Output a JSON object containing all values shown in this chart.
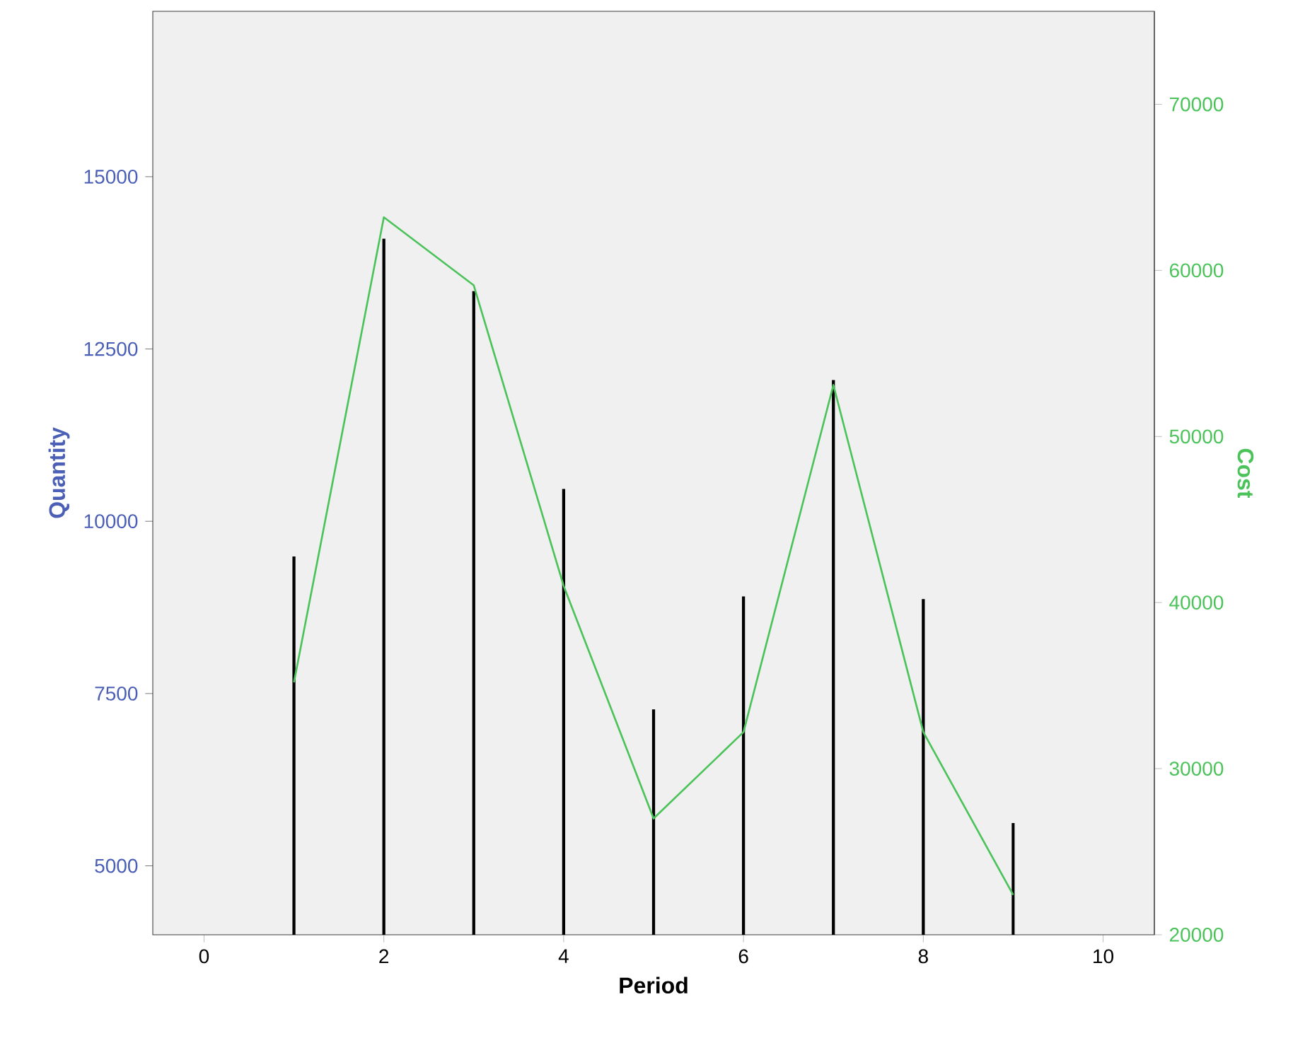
{
  "chart_data": {
    "type": "bar",
    "xlabel": "Period",
    "ylabel": "Quantity",
    "y2label": "Cost",
    "x": [
      1,
      2,
      3,
      4,
      5,
      6,
      7,
      8,
      9
    ],
    "series": [
      {
        "color": "#000000",
        "values": [
          9490,
          14100,
          13340,
          10470,
          7270,
          8910,
          12050,
          8870,
          5620
        ]
      },
      {
        "type": "line",
        "axis": "y2",
        "color": "#4cc35a",
        "values": [
          35200,
          63200,
          59100,
          41000,
          27000,
          32200,
          53100,
          32200,
          22400
        ]
      }
    ],
    "xlim": [
      -0.57,
      10.57
    ],
    "xticks": [
      0,
      2,
      4,
      6,
      8,
      10
    ],
    "ylim": [
      4000,
      17400
    ],
    "yticks": [
      5000,
      7500,
      10000,
      12500,
      15000
    ],
    "y2lim": [
      20000,
      75600
    ],
    "y2ticks": [
      20000,
      30000,
      40000,
      50000,
      60000,
      70000
    ]
  }
}
